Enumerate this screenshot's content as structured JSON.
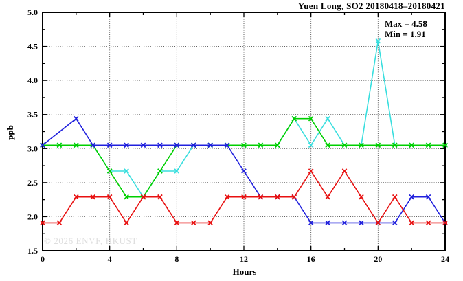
{
  "header": {
    "title": "Yuen Long, SO2 20180418–20180421"
  },
  "annotation": {
    "max_label": "Max = 4.58",
    "min_label": "Min = 1.91"
  },
  "watermark": "© 2026 ENVF, HKUST",
  "chart_data": {
    "type": "line",
    "title": "Yuen Long, SO2 20180418–20180421",
    "xlabel": "Hours",
    "ylabel": "ppb",
    "xlim": [
      0,
      24
    ],
    "ylim": [
      1.5,
      5.0
    ],
    "x_major_ticks": [
      0,
      4,
      8,
      12,
      16,
      20,
      24
    ],
    "x_minor_step": 2,
    "y_major_ticks": [
      1.5,
      2.0,
      2.5,
      3.0,
      3.5,
      4.0,
      4.5,
      5.0
    ],
    "y_minor_step": 0.25,
    "grid": true,
    "legend": "none",
    "marker": "x",
    "annotations": {
      "max": 4.58,
      "min": 1.91
    },
    "x": [
      0,
      1,
      2,
      3,
      4,
      5,
      6,
      7,
      8,
      9,
      10,
      11,
      12,
      13,
      14,
      15,
      16,
      17,
      18,
      19,
      20,
      21,
      22,
      23,
      24
    ],
    "series": [
      {
        "name": "cyan-series",
        "color": "#38dede",
        "values": [
          3.05,
          3.05,
          3.05,
          3.05,
          2.67,
          2.67,
          2.29,
          2.67,
          2.67,
          3.05,
          3.05,
          3.05,
          3.05,
          3.05,
          3.05,
          3.44,
          3.05,
          3.44,
          3.05,
          3.05,
          4.58,
          3.05,
          3.05,
          3.05,
          3.05
        ]
      },
      {
        "name": "green-series",
        "color": "#00cf00",
        "values": [
          3.05,
          3.05,
          3.05,
          3.05,
          2.67,
          2.29,
          2.29,
          2.67,
          3.05,
          3.05,
          3.05,
          3.05,
          3.05,
          3.05,
          3.05,
          3.44,
          3.44,
          3.05,
          3.05,
          3.05,
          3.05,
          3.05,
          3.05,
          3.05,
          3.05
        ]
      },
      {
        "name": "blue-series",
        "color": "#2020dd",
        "values": [
          3.05,
          null,
          3.44,
          3.05,
          3.05,
          3.05,
          3.05,
          3.05,
          3.05,
          3.05,
          3.05,
          3.05,
          2.67,
          2.29,
          2.29,
          2.29,
          1.91,
          1.91,
          1.91,
          1.91,
          1.91,
          1.91,
          2.29,
          2.29,
          1.91
        ]
      },
      {
        "name": "red-series",
        "color": "#e81111",
        "values": [
          1.91,
          1.91,
          2.29,
          2.29,
          2.29,
          1.91,
          2.29,
          2.29,
          1.91,
          1.91,
          1.91,
          2.29,
          2.29,
          2.29,
          2.29,
          2.29,
          2.67,
          2.29,
          2.67,
          2.29,
          1.91,
          2.29,
          1.91,
          1.91,
          1.91
        ]
      }
    ]
  }
}
